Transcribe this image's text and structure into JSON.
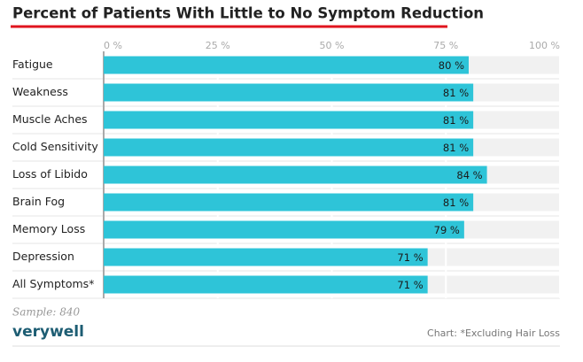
{
  "chart_data": {
    "type": "bar",
    "orientation": "horizontal",
    "title": "Percent of Patients With Little to No Symptom Reduction",
    "categories": [
      "Fatigue",
      "Weakness",
      "Muscle Aches",
      "Cold Sensitivity",
      "Loss of Libido",
      "Brain Fog",
      "Memory Loss",
      "Depression",
      "All Symptoms*"
    ],
    "values": [
      80,
      81,
      81,
      81,
      84,
      81,
      79,
      71,
      71
    ],
    "value_labels": [
      "80 %",
      "81 %",
      "81 %",
      "81 %",
      "84 %",
      "81 %",
      "79 %",
      "71 %",
      "71 %"
    ],
    "color": "#2ec4d8",
    "xlim": [
      0,
      100
    ],
    "xticks": [
      {
        "value": 0,
        "label": "0 %"
      },
      {
        "value": 25,
        "label": "25 %"
      },
      {
        "value": 50,
        "label": "50 %"
      },
      {
        "value": 75,
        "label": "75 %"
      },
      {
        "value": 100,
        "label": "100 %"
      }
    ],
    "grid": true,
    "note": "Sample: 840",
    "brand": "verywell",
    "source": "Chart: *Excluding Hair Loss"
  }
}
